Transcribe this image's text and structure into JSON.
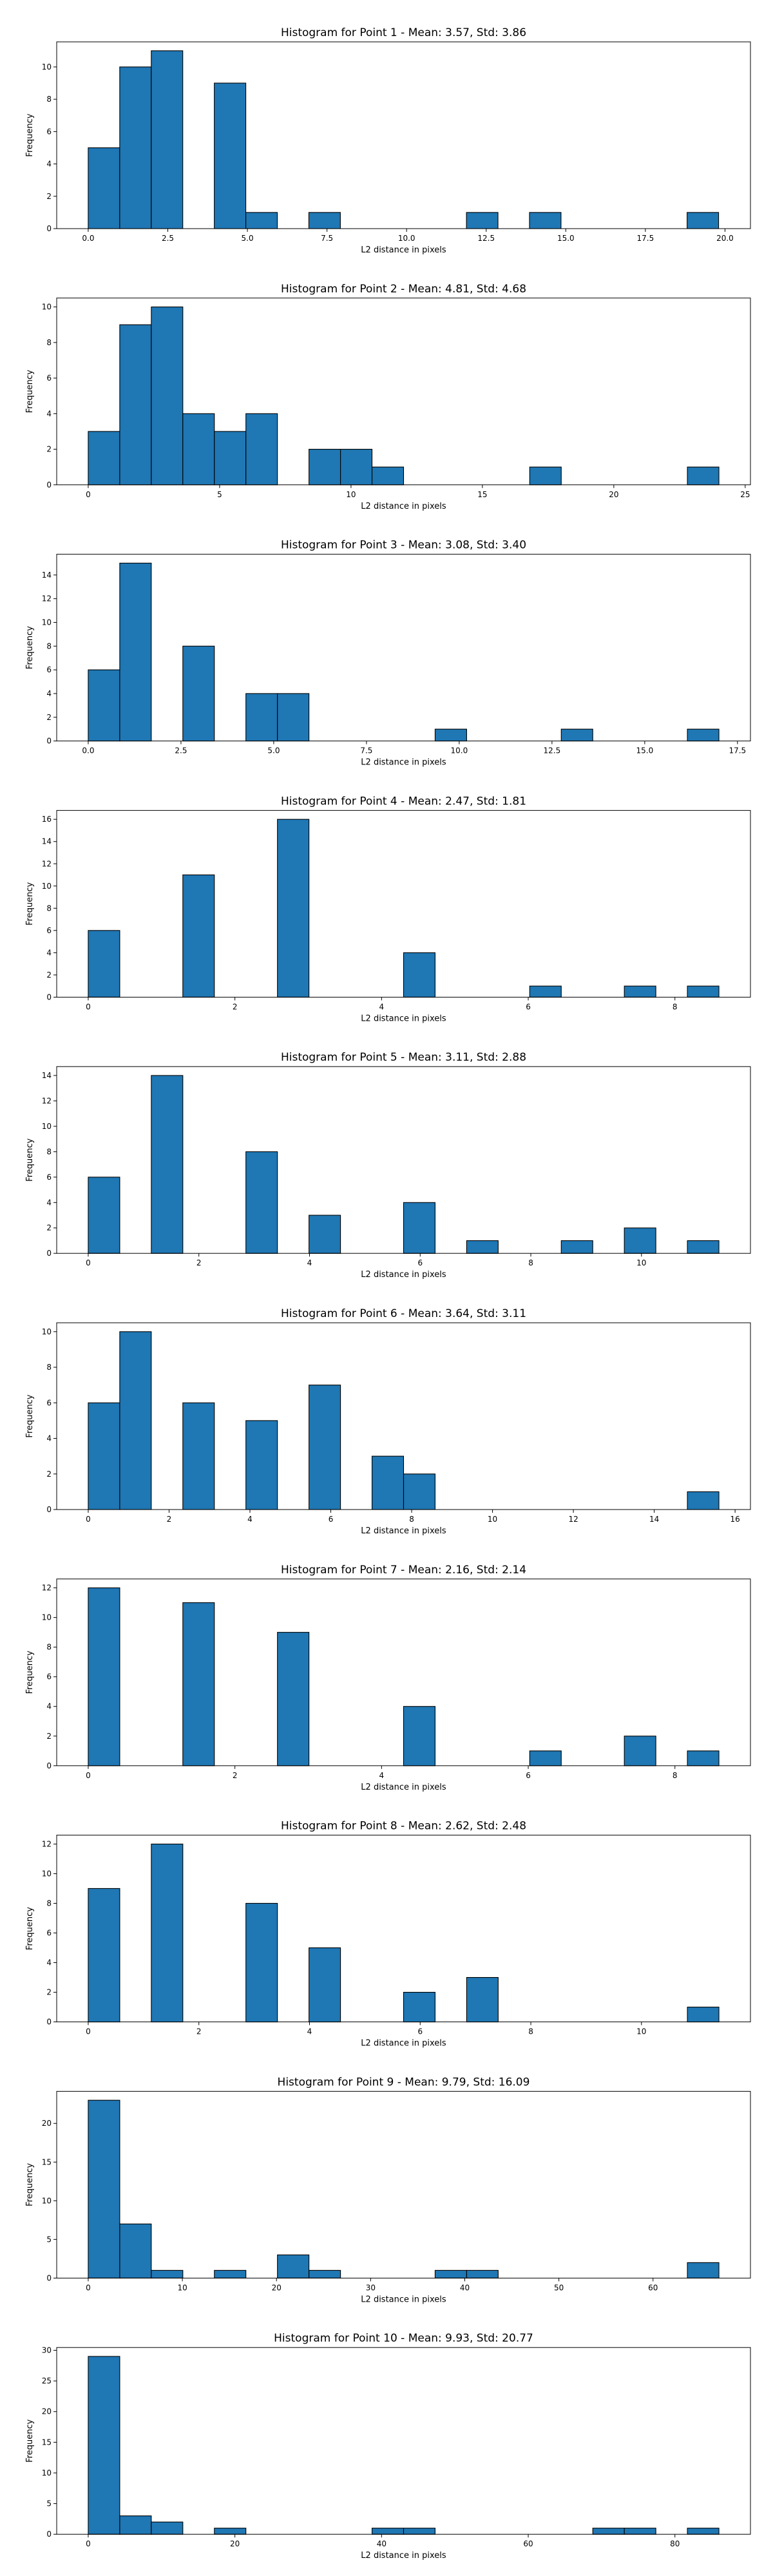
{
  "figure": {
    "background": "#ffffff",
    "bar_color": "#1f77b4",
    "edge_color": "#000000"
  },
  "chart_data": [
    {
      "type": "histogram",
      "title": "Histogram for Point 1 - Mean: 3.57, Std: 3.86",
      "xlabel": "L2 distance in pixels",
      "ylabel": "Frequency",
      "xlim": [
        -0.99,
        20.8
      ],
      "ylim": [
        0,
        11.55
      ],
      "xticks": [
        0,
        2.5,
        5,
        7.5,
        10,
        12.5,
        15,
        17.5,
        20
      ],
      "xtick_labels": [
        "0.0",
        "2.5",
        "5.0",
        "7.5",
        "10.0",
        "12.5",
        "15.0",
        "17.5",
        "20.0"
      ],
      "yticks": [
        0,
        2,
        4,
        6,
        8,
        10
      ],
      "ytick_labels": [
        "0",
        "2",
        "4",
        "6",
        "8",
        "10"
      ],
      "bin_edges": [
        0.0,
        0.99,
        1.98,
        2.97,
        3.96,
        4.95,
        5.94,
        6.93,
        7.92,
        8.91,
        9.9,
        10.89,
        11.88,
        12.87,
        13.86,
        14.85,
        15.84,
        16.83,
        17.82,
        18.81,
        19.8
      ],
      "counts": [
        5,
        10,
        11,
        0,
        9,
        1,
        0,
        1,
        0,
        0,
        0,
        0,
        1,
        0,
        1,
        0,
        0,
        0,
        0,
        1
      ]
    },
    {
      "type": "histogram",
      "title": "Histogram for Point 2 - Mean: 4.81, Std: 4.68",
      "xlabel": "L2 distance in pixels",
      "ylabel": "Frequency",
      "xlim": [
        -1.2,
        25.2
      ],
      "ylim": [
        0,
        10.5
      ],
      "xticks": [
        0,
        5,
        10,
        15,
        20,
        25
      ],
      "xtick_labels": [
        "0",
        "5",
        "10",
        "15",
        "20",
        "25"
      ],
      "yticks": [
        0,
        2,
        4,
        6,
        8,
        10
      ],
      "ytick_labels": [
        "0",
        "2",
        "4",
        "6",
        "8",
        "10"
      ],
      "bin_edges": [
        0.0,
        1.2,
        2.4,
        3.6,
        4.8,
        6.0,
        7.2,
        8.4,
        9.6,
        10.8,
        12.0,
        13.2,
        14.4,
        15.6,
        16.8,
        18.0,
        19.2,
        20.4,
        21.6,
        22.8,
        24.0
      ],
      "counts": [
        3,
        9,
        10,
        4,
        3,
        4,
        0,
        2,
        2,
        1,
        0,
        0,
        0,
        0,
        1,
        0,
        0,
        0,
        0,
        1
      ]
    },
    {
      "type": "histogram",
      "title": "Histogram for Point 3 - Mean: 3.08, Std: 3.40",
      "xlabel": "L2 distance in pixels",
      "ylabel": "Frequency",
      "xlim": [
        -0.85,
        17.85
      ],
      "ylim": [
        0,
        15.75
      ],
      "xticks": [
        0,
        2.5,
        5,
        7.5,
        10,
        12.5,
        15,
        17.5
      ],
      "xtick_labels": [
        "0.0",
        "2.5",
        "5.0",
        "7.5",
        "10.0",
        "12.5",
        "15.0",
        "17.5"
      ],
      "yticks": [
        0,
        2,
        4,
        6,
        8,
        10,
        12,
        14
      ],
      "ytick_labels": [
        "0",
        "2",
        "4",
        "6",
        "8",
        "10",
        "12",
        "14"
      ],
      "bin_edges": [
        0.0,
        0.85,
        1.7,
        2.55,
        3.4,
        4.25,
        5.1,
        5.95,
        6.8,
        7.65,
        8.5,
        9.35,
        10.2,
        11.05,
        11.9,
        12.75,
        13.6,
        14.45,
        15.3,
        16.15,
        17.0
      ],
      "counts": [
        6,
        15,
        0,
        8,
        0,
        4,
        4,
        0,
        0,
        0,
        0,
        1,
        0,
        0,
        0,
        1,
        0,
        0,
        0,
        1
      ]
    },
    {
      "type": "histogram",
      "title": "Histogram for Point 4 - Mean: 2.47, Std: 1.81",
      "xlabel": "L2 distance in pixels",
      "ylabel": "Frequency",
      "xlim": [
        -0.43,
        9.03
      ],
      "ylim": [
        0,
        16.8
      ],
      "xticks": [
        0,
        2,
        4,
        6,
        8
      ],
      "xtick_labels": [
        "0",
        "2",
        "4",
        "6",
        "8"
      ],
      "yticks": [
        0,
        2,
        4,
        6,
        8,
        10,
        12,
        14,
        16
      ],
      "ytick_labels": [
        "0",
        "2",
        "4",
        "6",
        "8",
        "10",
        "12",
        "14",
        "16"
      ],
      "bin_edges": [
        0.0,
        0.43,
        0.86,
        1.29,
        1.72,
        2.15,
        2.58,
        3.01,
        3.44,
        3.87,
        4.3,
        4.73,
        5.16,
        5.59,
        6.02,
        6.45,
        6.88,
        7.31,
        7.74,
        8.17,
        8.6
      ],
      "counts": [
        6,
        0,
        0,
        11,
        0,
        0,
        16,
        0,
        0,
        0,
        4,
        0,
        0,
        0,
        1,
        0,
        0,
        1,
        0,
        1
      ]
    },
    {
      "type": "histogram",
      "title": "Histogram for Point 5 - Mean: 3.11, Std: 2.88",
      "xlabel": "L2 distance in pixels",
      "ylabel": "Frequency",
      "xlim": [
        -0.57,
        11.97
      ],
      "ylim": [
        0,
        14.7
      ],
      "xticks": [
        0,
        2,
        4,
        6,
        8,
        10
      ],
      "xtick_labels": [
        "0",
        "2",
        "4",
        "6",
        "8",
        "10"
      ],
      "yticks": [
        0,
        2,
        4,
        6,
        8,
        10,
        12,
        14
      ],
      "ytick_labels": [
        "0",
        "2",
        "4",
        "6",
        "8",
        "10",
        "12",
        "14"
      ],
      "bin_edges": [
        0.0,
        0.57,
        1.14,
        1.71,
        2.28,
        2.85,
        3.42,
        3.99,
        4.56,
        5.13,
        5.7,
        6.27,
        6.84,
        7.41,
        7.98,
        8.55,
        9.12,
        9.69,
        10.26,
        10.83,
        11.4
      ],
      "counts": [
        6,
        0,
        14,
        0,
        0,
        8,
        0,
        3,
        0,
        0,
        4,
        0,
        1,
        0,
        0,
        1,
        0,
        2,
        0,
        1
      ]
    },
    {
      "type": "histogram",
      "title": "Histogram for Point 6 - Mean: 3.64, Std: 3.11",
      "xlabel": "L2 distance in pixels",
      "ylabel": "Frequency",
      "xlim": [
        -0.78,
        16.38
      ],
      "ylim": [
        0,
        10.5
      ],
      "xticks": [
        0,
        2,
        4,
        6,
        8,
        10,
        12,
        14,
        16
      ],
      "xtick_labels": [
        "0",
        "2",
        "4",
        "6",
        "8",
        "10",
        "12",
        "14",
        "16"
      ],
      "yticks": [
        0,
        2,
        4,
        6,
        8,
        10
      ],
      "ytick_labels": [
        "0",
        "2",
        "4",
        "6",
        "8",
        "10"
      ],
      "bin_edges": [
        0.0,
        0.78,
        1.56,
        2.34,
        3.12,
        3.9,
        4.68,
        5.46,
        6.24,
        7.02,
        7.8,
        8.58,
        9.36,
        10.14,
        10.92,
        11.7,
        12.48,
        13.26,
        14.04,
        14.82,
        15.6
      ],
      "counts": [
        6,
        10,
        0,
        6,
        0,
        5,
        0,
        7,
        0,
        3,
        2,
        0,
        0,
        0,
        0,
        0,
        0,
        0,
        0,
        1
      ]
    },
    {
      "type": "histogram",
      "title": "Histogram for Point 7 - Mean: 2.16, Std: 2.14",
      "xlabel": "L2 distance in pixels",
      "ylabel": "Frequency",
      "xlim": [
        -0.43,
        9.03
      ],
      "ylim": [
        0,
        12.6
      ],
      "xticks": [
        0,
        2,
        4,
        6,
        8
      ],
      "xtick_labels": [
        "0",
        "2",
        "4",
        "6",
        "8"
      ],
      "yticks": [
        0,
        2,
        4,
        6,
        8,
        10,
        12
      ],
      "ytick_labels": [
        "0",
        "2",
        "4",
        "6",
        "8",
        "10",
        "12"
      ],
      "bin_edges": [
        0.0,
        0.43,
        0.86,
        1.29,
        1.72,
        2.15,
        2.58,
        3.01,
        3.44,
        3.87,
        4.3,
        4.73,
        5.16,
        5.59,
        6.02,
        6.45,
        6.88,
        7.31,
        7.74,
        8.17,
        8.6
      ],
      "counts": [
        12,
        0,
        0,
        11,
        0,
        0,
        9,
        0,
        0,
        0,
        4,
        0,
        0,
        0,
        1,
        0,
        0,
        2,
        0,
        1
      ]
    },
    {
      "type": "histogram",
      "title": "Histogram for Point 8 - Mean: 2.62, Std: 2.48",
      "xlabel": "L2 distance in pixels",
      "ylabel": "Frequency",
      "xlim": [
        -0.57,
        11.97
      ],
      "ylim": [
        0,
        12.6
      ],
      "xticks": [
        0,
        2,
        4,
        6,
        8,
        10
      ],
      "xtick_labels": [
        "0",
        "2",
        "4",
        "6",
        "8",
        "10"
      ],
      "yticks": [
        0,
        2,
        4,
        6,
        8,
        10,
        12
      ],
      "ytick_labels": [
        "0",
        "2",
        "4",
        "6",
        "8",
        "10",
        "12"
      ],
      "bin_edges": [
        0.0,
        0.57,
        1.14,
        1.71,
        2.28,
        2.85,
        3.42,
        3.99,
        4.56,
        5.13,
        5.7,
        6.27,
        6.84,
        7.41,
        7.98,
        8.55,
        9.12,
        9.69,
        10.26,
        10.83,
        11.4
      ],
      "counts": [
        9,
        0,
        12,
        0,
        0,
        8,
        0,
        5,
        0,
        0,
        2,
        0,
        3,
        0,
        0,
        0,
        0,
        0,
        0,
        1
      ]
    },
    {
      "type": "histogram",
      "title": "Histogram for Point 9 - Mean: 9.79, Std: 16.09",
      "xlabel": "L2 distance in pixels",
      "ylabel": "Frequency",
      "xlim": [
        -3.35,
        70.35
      ],
      "ylim": [
        0,
        24.15
      ],
      "xticks": [
        0,
        10,
        20,
        30,
        40,
        50,
        60
      ],
      "xtick_labels": [
        "0",
        "10",
        "20",
        "30",
        "40",
        "50",
        "60"
      ],
      "yticks": [
        0,
        5,
        10,
        15,
        20
      ],
      "ytick_labels": [
        "0",
        "5",
        "10",
        "15",
        "20"
      ],
      "bin_edges": [
        0.0,
        3.35,
        6.7,
        10.05,
        13.4,
        16.75,
        20.1,
        23.45,
        26.8,
        30.15,
        33.5,
        36.85,
        40.2,
        43.55,
        46.9,
        50.25,
        53.6,
        56.95,
        60.3,
        63.65,
        67.0
      ],
      "counts": [
        23,
        7,
        1,
        0,
        1,
        0,
        3,
        1,
        0,
        0,
        0,
        1,
        1,
        0,
        0,
        0,
        0,
        0,
        0,
        2
      ]
    },
    {
      "type": "histogram",
      "title": "Histogram for Point 10 - Mean: 9.93, Std: 20.77",
      "xlabel": "L2 distance in pixels",
      "ylabel": "Frequency",
      "xlim": [
        -4.3,
        90.3
      ],
      "ylim": [
        0,
        30.45
      ],
      "xticks": [
        0,
        20,
        40,
        60,
        80
      ],
      "xtick_labels": [
        "0",
        "20",
        "40",
        "60",
        "80"
      ],
      "yticks": [
        0,
        5,
        10,
        15,
        20,
        25,
        30
      ],
      "ytick_labels": [
        "0",
        "5",
        "10",
        "15",
        "20",
        "25",
        "30"
      ],
      "bin_edges": [
        0.0,
        4.3,
        8.6,
        12.9,
        17.2,
        21.5,
        25.8,
        30.1,
        34.4,
        38.7,
        43.0,
        47.3,
        51.6,
        55.9,
        60.2,
        64.5,
        68.8,
        73.1,
        77.4,
        81.7,
        86.0
      ],
      "counts": [
        29,
        3,
        2,
        0,
        1,
        0,
        0,
        0,
        0,
        1,
        1,
        0,
        0,
        0,
        0,
        0,
        1,
        1,
        0,
        1
      ]
    }
  ]
}
